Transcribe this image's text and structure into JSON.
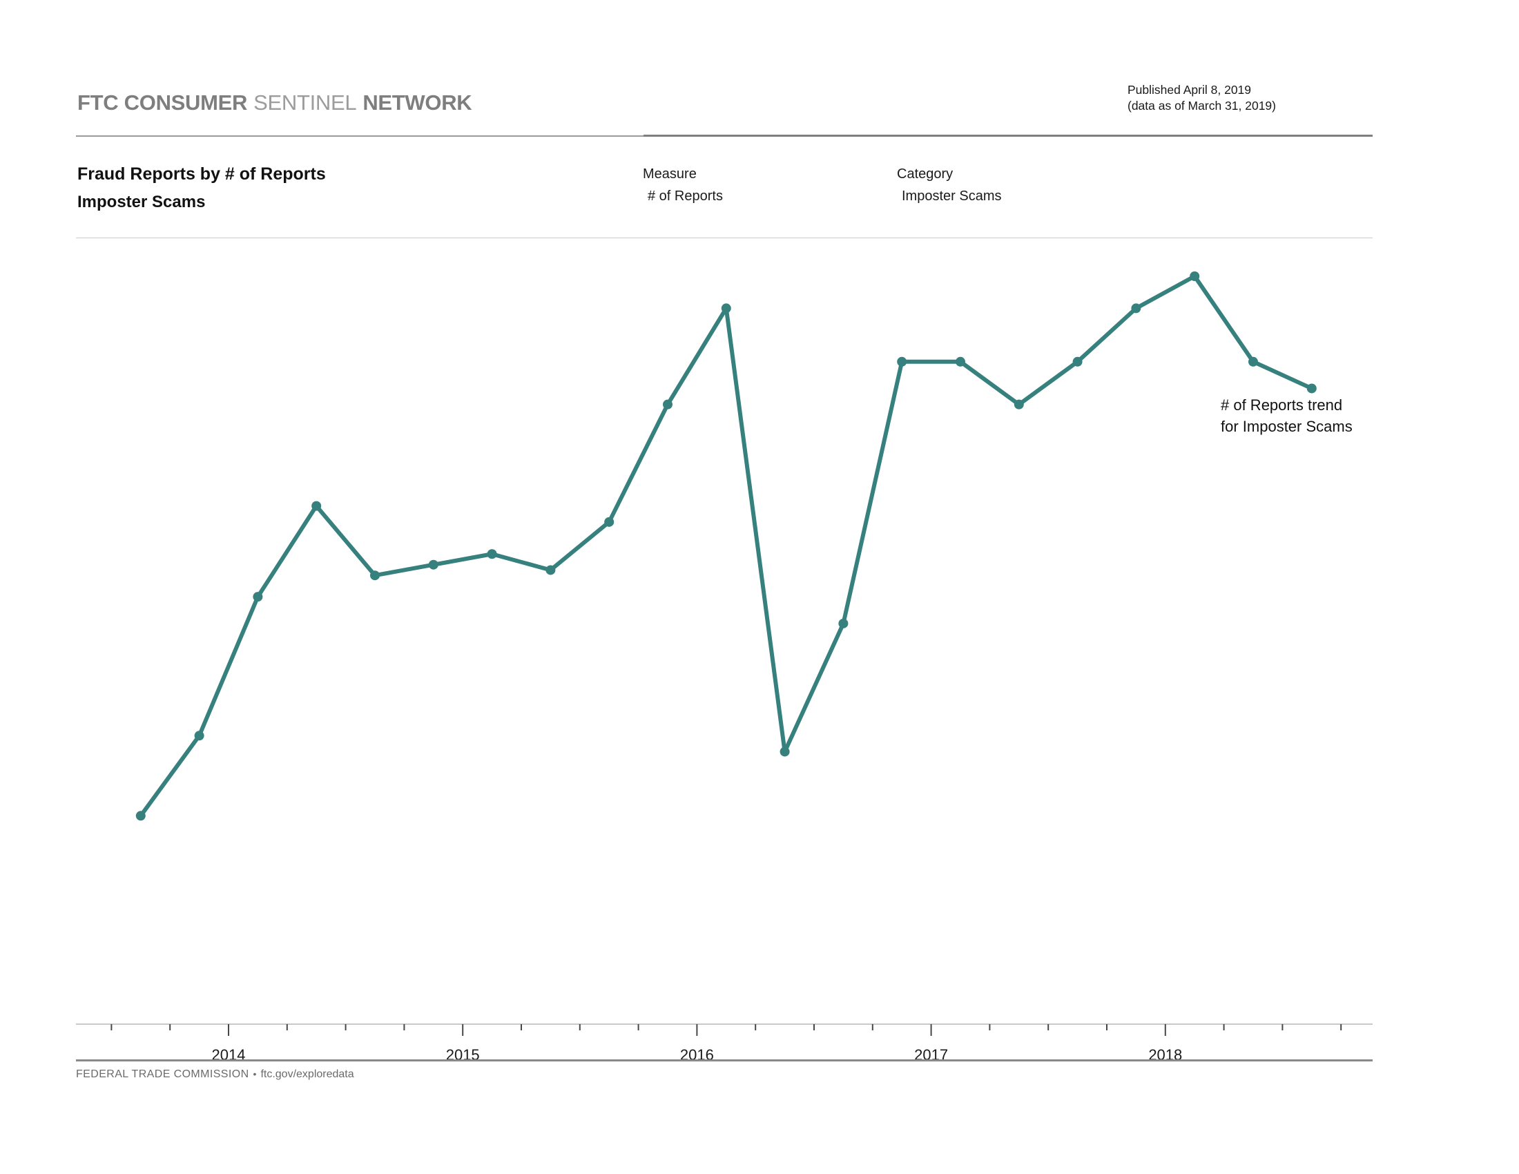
{
  "page": {
    "header": {
      "brand_bold_1": "FTC CONSUMER",
      "brand_light": "SENTINEL",
      "brand_bold_2": "NETWORK"
    },
    "published": {
      "line1": "Published April 8, 2019",
      "line2": "(data as of March 31, 2019)"
    },
    "title": {
      "line1": "Fraud Reports by # of Reports",
      "line2": "Imposter Scams"
    },
    "measure": {
      "label": "Measure",
      "value": "# of Reports"
    },
    "category": {
      "label": "Category",
      "value": "Imposter Scams"
    },
    "annotation": {
      "line1": "# of Reports trend",
      "line2": "for Imposter Scams"
    },
    "footer": {
      "org": "FEDERAL TRADE COMMISSION",
      "separator": "•",
      "url": "ftc.gov/exploredata"
    }
  },
  "chart_data": {
    "type": "line",
    "title": "Fraud Reports by # of Reports — Imposter Scams",
    "xlabel": "",
    "ylabel": "",
    "y_axis_visible": false,
    "y_range_est": [
      0,
      150000
    ],
    "grid": false,
    "line_color": "#36807E",
    "marker": "circle",
    "legend_position": "right-annotation",
    "x_tick_labels": [
      "2014",
      "2015",
      "2016",
      "2017",
      "2018"
    ],
    "x_tick_years": [
      2014,
      2015,
      2016,
      2017,
      2018
    ],
    "x_minor_ticks_per_year": 4,
    "x_minor_tick_range": [
      2013.5,
      2018.75
    ],
    "series": [
      {
        "name": "# of Reports trend for Imposter Scams",
        "points": [
          {
            "q": "2013 Q3",
            "t": 2013.625,
            "reports_est": 39000
          },
          {
            "q": "2013 Q4",
            "t": 2013.875,
            "reports_est": 54000
          },
          {
            "q": "2014 Q1",
            "t": 2014.125,
            "reports_est": 80000
          },
          {
            "q": "2014 Q2",
            "t": 2014.375,
            "reports_est": 97000
          },
          {
            "q": "2014 Q3",
            "t": 2014.625,
            "reports_est": 84000
          },
          {
            "q": "2014 Q4",
            "t": 2014.875,
            "reports_est": 86000
          },
          {
            "q": "2015 Q1",
            "t": 2015.125,
            "reports_est": 88000
          },
          {
            "q": "2015 Q2",
            "t": 2015.375,
            "reports_est": 85000
          },
          {
            "q": "2015 Q3",
            "t": 2015.625,
            "reports_est": 94000
          },
          {
            "q": "2015 Q4",
            "t": 2015.875,
            "reports_est": 116000
          },
          {
            "q": "2016 Q1",
            "t": 2016.125,
            "reports_est": 134000
          },
          {
            "q": "2016 Q2",
            "t": 2016.375,
            "reports_est": 51000
          },
          {
            "q": "2016 Q3",
            "t": 2016.625,
            "reports_est": 75000
          },
          {
            "q": "2016 Q4",
            "t": 2016.875,
            "reports_est": 124000
          },
          {
            "q": "2017 Q1",
            "t": 2017.125,
            "reports_est": 124000
          },
          {
            "q": "2017 Q2",
            "t": 2017.375,
            "reports_est": 116000
          },
          {
            "q": "2017 Q3",
            "t": 2017.625,
            "reports_est": 124000
          },
          {
            "q": "2017 Q4",
            "t": 2017.875,
            "reports_est": 134000
          },
          {
            "q": "2018 Q1",
            "t": 2018.125,
            "reports_est": 140000
          },
          {
            "q": "2018 Q2",
            "t": 2018.375,
            "reports_est": 124000
          },
          {
            "q": "2018 Q3",
            "t": 2018.625,
            "reports_est": 119000
          }
        ]
      }
    ]
  }
}
